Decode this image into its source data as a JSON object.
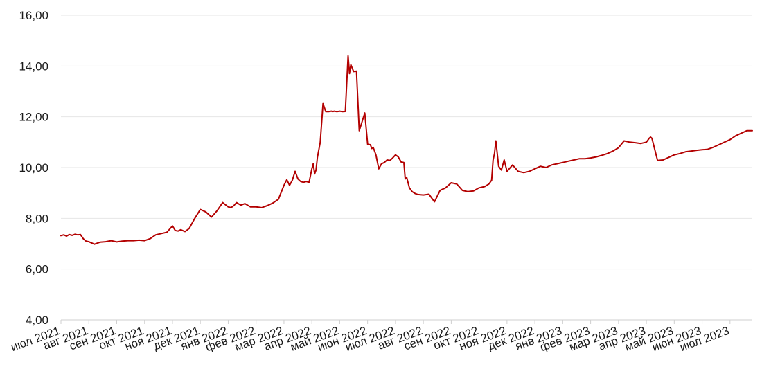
{
  "chart_data": {
    "type": "line",
    "title": "",
    "xlabel": "",
    "ylabel": "",
    "ylim": [
      4,
      16
    ],
    "yticks": [
      "4,00",
      "6,00",
      "8,00",
      "10,00",
      "12,00",
      "14,00",
      "16,00"
    ],
    "xticks": [
      "июл 2021",
      "авг 2021",
      "сен 2021",
      "окт 2021",
      "ноя 2021",
      "дек 2021",
      "янв 2022",
      "фев 2022",
      "мар 2022",
      "апр 2022",
      "май 2022",
      "июн 2022",
      "июл 2022",
      "авг 2022",
      "сен 2022",
      "окт 2022",
      "ноя 2022",
      "дек 2022",
      "янв 2023",
      "фев 2023",
      "мар 2023",
      "апр 2023",
      "май 2023",
      "июн 2023",
      "июл 2023"
    ],
    "grid": true,
    "colors": {
      "line": "#b30000",
      "grid": "#e6e6e6"
    },
    "series": [
      {
        "x": [
          0.0,
          0.1,
          0.2,
          0.3,
          0.4,
          0.5,
          0.6,
          0.7,
          0.8,
          0.9,
          1.0,
          1.2,
          1.4,
          1.6,
          1.8,
          2.0,
          2.2,
          2.4,
          2.6,
          2.8,
          3.0,
          3.2,
          3.4,
          3.6,
          3.8,
          4.0,
          4.1,
          4.2,
          4.3,
          4.45,
          4.6,
          4.8,
          5.0,
          5.2,
          5.4,
          5.6,
          5.8,
          6.0,
          6.1,
          6.2,
          6.3,
          6.45,
          6.6,
          6.8,
          7.0,
          7.2,
          7.4,
          7.6,
          7.8,
          8.0,
          8.1,
          8.2,
          8.3,
          8.4,
          8.5,
          8.6,
          8.7,
          8.8,
          8.9,
          9.0,
          9.05,
          9.1,
          9.15,
          9.2,
          9.3,
          9.4,
          9.5,
          9.6,
          9.7,
          9.75,
          9.8,
          9.9,
          10.0,
          10.1,
          10.2,
          10.3,
          10.35,
          10.4,
          10.5,
          10.6,
          10.7,
          10.8,
          10.9,
          11.0,
          11.1,
          11.15,
          11.2,
          11.3,
          11.4,
          11.5,
          11.6,
          11.7,
          11.8,
          11.9,
          12.0,
          12.1,
          12.2,
          12.3,
          12.35,
          12.4,
          12.5,
          12.6,
          12.7,
          12.8,
          13.0,
          13.2,
          13.4,
          13.6,
          13.8,
          14.0,
          14.2,
          14.4,
          14.6,
          14.8,
          15.0,
          15.2,
          15.35,
          15.45,
          15.5,
          15.55,
          15.6,
          15.7,
          15.8,
          15.9,
          16.0,
          16.2,
          16.4,
          16.6,
          16.8,
          17.0,
          17.2,
          17.4,
          17.6,
          17.8,
          18.0,
          18.2,
          18.4,
          18.6,
          18.8,
          19.0,
          19.2,
          19.4,
          19.6,
          19.8,
          20.0,
          20.2,
          20.4,
          20.6,
          20.8,
          21.0,
          21.1,
          21.15,
          21.2,
          21.4,
          21.6,
          21.8,
          22.0,
          22.2,
          22.4,
          22.6,
          22.8,
          23.0,
          23.2,
          23.4,
          23.6,
          23.8,
          24.0,
          24.2,
          24.4,
          24.6,
          24.8
        ],
        "y": [
          7.32,
          7.35,
          7.3,
          7.36,
          7.33,
          7.37,
          7.35,
          7.36,
          7.2,
          7.1,
          7.08,
          6.98,
          7.06,
          7.08,
          7.12,
          7.07,
          7.1,
          7.12,
          7.12,
          7.14,
          7.12,
          7.2,
          7.35,
          7.4,
          7.45,
          7.7,
          7.52,
          7.5,
          7.55,
          7.48,
          7.6,
          8.0,
          8.35,
          8.25,
          8.05,
          8.3,
          8.62,
          8.45,
          8.42,
          8.5,
          8.62,
          8.52,
          8.58,
          8.45,
          8.45,
          8.42,
          8.5,
          8.6,
          8.75,
          9.3,
          9.52,
          9.3,
          9.5,
          9.85,
          9.55,
          9.45,
          9.42,
          9.45,
          9.42,
          9.95,
          10.15,
          9.75,
          9.9,
          10.4,
          11.0,
          12.52,
          12.2,
          12.2,
          12.22,
          12.2,
          12.22,
          12.2,
          12.22,
          12.2,
          12.21,
          14.4,
          13.7,
          14.05,
          13.78,
          13.8,
          11.45,
          11.8,
          12.15,
          10.92,
          10.9,
          10.75,
          10.8,
          10.5,
          9.95,
          10.15,
          10.2,
          10.3,
          10.28,
          10.38,
          10.5,
          10.42,
          10.22,
          10.2,
          9.55,
          9.62,
          9.2,
          9.05,
          8.98,
          8.94,
          8.92,
          8.95,
          8.65,
          9.1,
          9.2,
          9.4,
          9.35,
          9.1,
          9.05,
          9.08,
          9.2,
          9.25,
          9.35,
          9.5,
          10.3,
          10.55,
          11.05,
          10.05,
          9.9,
          10.3,
          9.85,
          10.1,
          9.85,
          9.8,
          9.85,
          9.95,
          10.05,
          10.0,
          10.1,
          10.15,
          10.2,
          10.25,
          10.3,
          10.35,
          10.35,
          10.38,
          10.42,
          10.48,
          10.55,
          10.65,
          10.78,
          11.05,
          11.0,
          10.98,
          10.95,
          11.0,
          11.15,
          11.2,
          11.15,
          10.28,
          10.3,
          10.4,
          10.5,
          10.55,
          10.62,
          10.65,
          10.68,
          10.7,
          10.72,
          10.8,
          10.9,
          11.0,
          11.1,
          11.25,
          11.35,
          11.45,
          11.45
        ]
      }
    ]
  }
}
